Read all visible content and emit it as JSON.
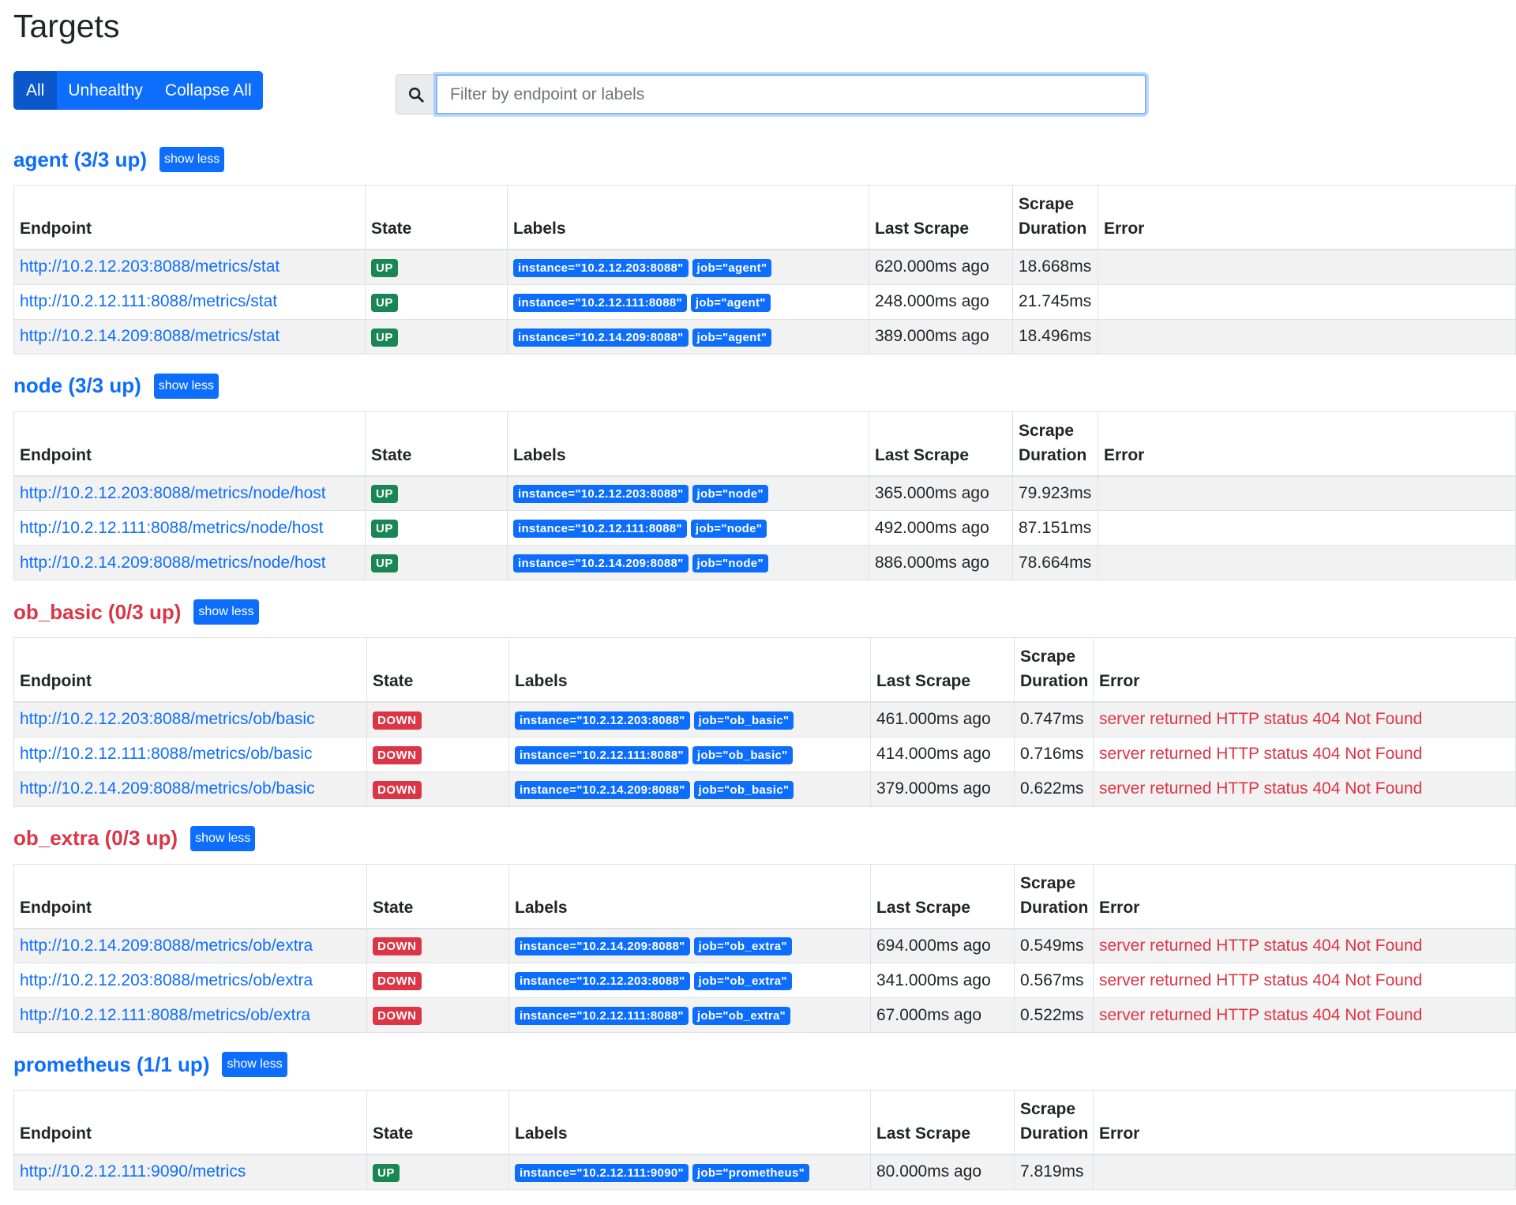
{
  "page_title": "Targets",
  "filters": {
    "all": "All",
    "unhealthy": "Unhealthy",
    "collapse": "Collapse All"
  },
  "search": {
    "placeholder": "Filter by endpoint or labels"
  },
  "columns": {
    "endpoint": "Endpoint",
    "state": "State",
    "labels": "Labels",
    "last_scrape": "Last Scrape",
    "scrape": "Scrape",
    "duration": "Duration",
    "error": "Error"
  },
  "show_less": "show less",
  "pools": [
    {
      "title": "agent (3/3 up)",
      "healthy": true,
      "targets": [
        {
          "endpoint": "http://10.2.12.203:8088/metrics/stat",
          "state": "UP",
          "instance": "instance=\"10.2.12.203:8088\"",
          "job": "job=\"agent\"",
          "last_scrape": "620.000ms ago",
          "duration": "18.668ms",
          "error": ""
        },
        {
          "endpoint": "http://10.2.12.111:8088/metrics/stat",
          "state": "UP",
          "instance": "instance=\"10.2.12.111:8088\"",
          "job": "job=\"agent\"",
          "last_scrape": "248.000ms ago",
          "duration": "21.745ms",
          "error": ""
        },
        {
          "endpoint": "http://10.2.14.209:8088/metrics/stat",
          "state": "UP",
          "instance": "instance=\"10.2.14.209:8088\"",
          "job": "job=\"agent\"",
          "last_scrape": "389.000ms ago",
          "duration": "18.496ms",
          "error": ""
        }
      ]
    },
    {
      "title": "node (3/3 up)",
      "healthy": true,
      "targets": [
        {
          "endpoint": "http://10.2.12.203:8088/metrics/node/host",
          "state": "UP",
          "instance": "instance=\"10.2.12.203:8088\"",
          "job": "job=\"node\"",
          "last_scrape": "365.000ms ago",
          "duration": "79.923ms",
          "error": ""
        },
        {
          "endpoint": "http://10.2.12.111:8088/metrics/node/host",
          "state": "UP",
          "instance": "instance=\"10.2.12.111:8088\"",
          "job": "job=\"node\"",
          "last_scrape": "492.000ms ago",
          "duration": "87.151ms",
          "error": ""
        },
        {
          "endpoint": "http://10.2.14.209:8088/metrics/node/host",
          "state": "UP",
          "instance": "instance=\"10.2.14.209:8088\"",
          "job": "job=\"node\"",
          "last_scrape": "886.000ms ago",
          "duration": "78.664ms",
          "error": ""
        }
      ]
    },
    {
      "title": "ob_basic (0/3 up)",
      "healthy": false,
      "targets": [
        {
          "endpoint": "http://10.2.12.203:8088/metrics/ob/basic",
          "state": "DOWN",
          "instance": "instance=\"10.2.12.203:8088\"",
          "job": "job=\"ob_basic\"",
          "last_scrape": "461.000ms ago",
          "duration": "0.747ms",
          "error": "server returned HTTP status 404 Not Found"
        },
        {
          "endpoint": "http://10.2.12.111:8088/metrics/ob/basic",
          "state": "DOWN",
          "instance": "instance=\"10.2.12.111:8088\"",
          "job": "job=\"ob_basic\"",
          "last_scrape": "414.000ms ago",
          "duration": "0.716ms",
          "error": "server returned HTTP status 404 Not Found"
        },
        {
          "endpoint": "http://10.2.14.209:8088/metrics/ob/basic",
          "state": "DOWN",
          "instance": "instance=\"10.2.14.209:8088\"",
          "job": "job=\"ob_basic\"",
          "last_scrape": "379.000ms ago",
          "duration": "0.622ms",
          "error": "server returned HTTP status 404 Not Found"
        }
      ]
    },
    {
      "title": "ob_extra (0/3 up)",
      "healthy": false,
      "targets": [
        {
          "endpoint": "http://10.2.14.209:8088/metrics/ob/extra",
          "state": "DOWN",
          "instance": "instance=\"10.2.14.209:8088\"",
          "job": "job=\"ob_extra\"",
          "last_scrape": "694.000ms ago",
          "duration": "0.549ms",
          "error": "server returned HTTP status 404 Not Found"
        },
        {
          "endpoint": "http://10.2.12.203:8088/metrics/ob/extra",
          "state": "DOWN",
          "instance": "instance=\"10.2.12.203:8088\"",
          "job": "job=\"ob_extra\"",
          "last_scrape": "341.000ms ago",
          "duration": "0.567ms",
          "error": "server returned HTTP status 404 Not Found"
        },
        {
          "endpoint": "http://10.2.12.111:8088/metrics/ob/extra",
          "state": "DOWN",
          "instance": "instance=\"10.2.12.111:8088\"",
          "job": "job=\"ob_extra\"",
          "last_scrape": "67.000ms ago",
          "duration": "0.522ms",
          "error": "server returned HTTP status 404 Not Found"
        }
      ]
    },
    {
      "title": "prometheus (1/1 up)",
      "healthy": true,
      "targets": [
        {
          "endpoint": "http://10.2.12.111:9090/metrics",
          "state": "UP",
          "instance": "instance=\"10.2.12.111:9090\"",
          "job": "job=\"prometheus\"",
          "last_scrape": "80.000ms ago",
          "duration": "7.819ms",
          "error": ""
        }
      ]
    }
  ],
  "colors": {
    "primary": "#0d6efd",
    "success": "#198754",
    "danger": "#dc3545"
  },
  "icons": {
    "search": "search-icon"
  }
}
